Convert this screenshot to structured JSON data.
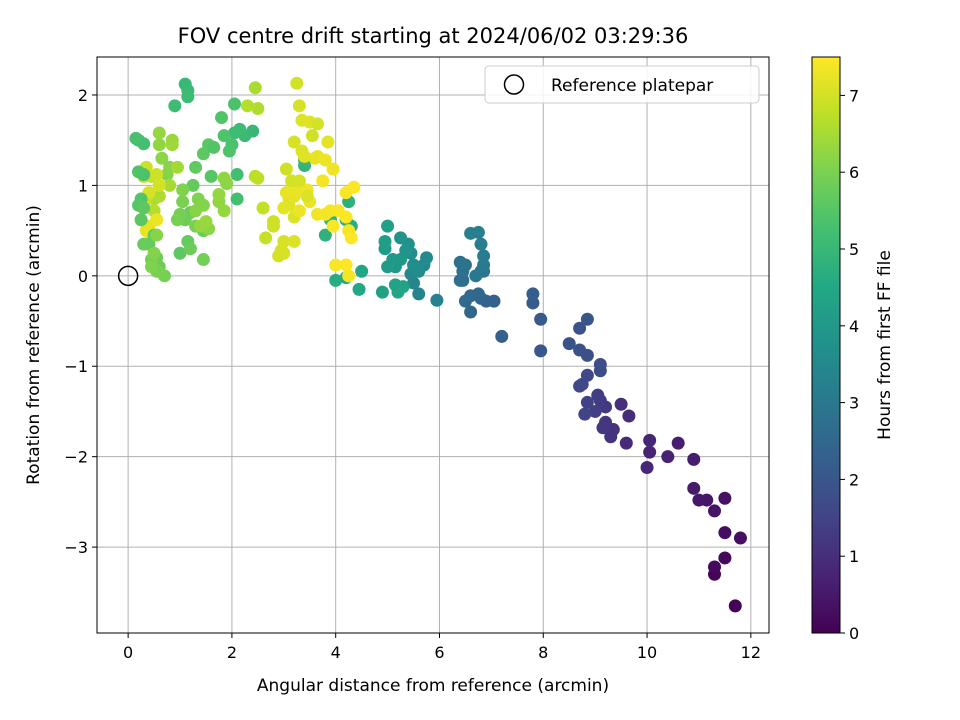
{
  "chart_data": {
    "type": "scatter",
    "title": "FOV centre drift starting at 2024/06/02 03:29:36",
    "xlabel": "Angular distance from reference (arcmin)",
    "ylabel": "Rotation from reference (arcmin)",
    "xlim": [
      -0.6,
      12.35
    ],
    "ylim": [
      -3.95,
      2.42
    ],
    "xticks": [
      0,
      2,
      4,
      6,
      8,
      10,
      12
    ],
    "yticks": [
      -3,
      -2,
      -1,
      0,
      1,
      2
    ],
    "grid": true,
    "legend": {
      "placement": "top-right",
      "entries": [
        "Reference platepar"
      ]
    },
    "reference_point": {
      "x": 0,
      "y": 0
    },
    "colorbar": {
      "label": "Hours from first FF file",
      "colormap": "viridis",
      "range": [
        0,
        7.5
      ],
      "ticks": [
        0,
        1,
        2,
        3,
        4,
        5,
        6,
        7
      ]
    },
    "points": [
      [
        11.7,
        -3.65,
        0.05
      ],
      [
        11.3,
        -3.3,
        0.1
      ],
      [
        11.5,
        -3.12,
        0.15
      ],
      [
        11.3,
        -3.22,
        0.2
      ],
      [
        11.5,
        -2.84,
        0.25
      ],
      [
        11.8,
        -2.9,
        0.3
      ],
      [
        11.5,
        -2.46,
        0.35
      ],
      [
        11.3,
        -2.6,
        0.4
      ],
      [
        11.15,
        -2.48,
        0.45
      ],
      [
        11.0,
        -2.48,
        0.5
      ],
      [
        10.9,
        -2.35,
        0.55
      ],
      [
        10.9,
        -2.03,
        0.6
      ],
      [
        10.6,
        -1.85,
        0.65
      ],
      [
        10.4,
        -2.0,
        0.7
      ],
      [
        10.05,
        -1.95,
        0.75
      ],
      [
        10.05,
        -1.82,
        0.8
      ],
      [
        10.0,
        -2.12,
        0.85
      ],
      [
        9.6,
        -1.85,
        0.9
      ],
      [
        9.65,
        -1.55,
        0.95
      ],
      [
        9.5,
        -1.42,
        1.0
      ],
      [
        9.35,
        -1.7,
        1.05
      ],
      [
        9.3,
        -1.78,
        1.1
      ],
      [
        9.2,
        -1.62,
        1.15
      ],
      [
        9.15,
        -1.68,
        1.2
      ],
      [
        9.2,
        -1.45,
        1.25
      ],
      [
        9.1,
        -1.38,
        1.3
      ],
      [
        9.05,
        -1.32,
        1.35
      ],
      [
        9.0,
        -1.5,
        1.4
      ],
      [
        8.85,
        -1.4,
        1.45
      ],
      [
        8.8,
        -1.53,
        1.5
      ],
      [
        8.75,
        -1.2,
        1.55
      ],
      [
        8.85,
        -1.1,
        1.6
      ],
      [
        8.7,
        -1.22,
        1.65
      ],
      [
        9.1,
        -1.05,
        1.7
      ],
      [
        9.1,
        -0.98,
        1.75
      ],
      [
        8.85,
        -0.88,
        1.8
      ],
      [
        8.7,
        -0.82,
        1.85
      ],
      [
        8.5,
        -0.75,
        1.9
      ],
      [
        8.7,
        -0.58,
        1.95
      ],
      [
        8.85,
        -0.48,
        2.0
      ],
      [
        7.95,
        -0.83,
        2.05
      ],
      [
        7.95,
        -0.48,
        2.1
      ],
      [
        7.8,
        -0.3,
        2.15
      ],
      [
        7.8,
        -0.2,
        2.2
      ],
      [
        7.2,
        -0.67,
        2.25
      ],
      [
        7.05,
        -0.28,
        2.3
      ],
      [
        6.9,
        -0.28,
        2.35
      ],
      [
        6.8,
        -0.25,
        2.4
      ],
      [
        6.75,
        -0.2,
        2.45
      ],
      [
        6.6,
        -0.4,
        2.5
      ],
      [
        6.6,
        -0.22,
        2.55
      ],
      [
        6.5,
        -0.28,
        2.6
      ],
      [
        6.45,
        -0.05,
        2.65
      ],
      [
        6.4,
        -0.05,
        2.7
      ],
      [
        6.45,
        0.05,
        2.75
      ],
      [
        6.4,
        0.15,
        2.8
      ],
      [
        6.5,
        0.12,
        2.85
      ],
      [
        6.8,
        0.05,
        2.9
      ],
      [
        6.85,
        0.05,
        2.95
      ],
      [
        6.7,
        0.0,
        3.0
      ],
      [
        6.85,
        0.12,
        3.05
      ],
      [
        6.85,
        0.22,
        3.1
      ],
      [
        6.8,
        0.35,
        3.15
      ],
      [
        6.75,
        0.48,
        3.2
      ],
      [
        6.6,
        0.47,
        3.25
      ],
      [
        5.95,
        -0.27,
        3.3
      ],
      [
        5.6,
        -0.2,
        3.35
      ],
      [
        5.5,
        -0.08,
        3.4
      ],
      [
        5.45,
        0.02,
        3.45
      ],
      [
        5.7,
        0.12,
        3.5
      ],
      [
        5.75,
        0.2,
        3.55
      ],
      [
        5.6,
        0.05,
        3.6
      ],
      [
        5.5,
        0.12,
        3.65
      ],
      [
        5.45,
        0.25,
        3.7
      ],
      [
        5.4,
        0.35,
        3.75
      ],
      [
        5.25,
        0.42,
        3.8
      ],
      [
        5.35,
        0.28,
        3.85
      ],
      [
        5.25,
        0.18,
        3.9
      ],
      [
        5.15,
        0.1,
        3.95
      ],
      [
        5.1,
        0.18,
        4.0
      ],
      [
        5.0,
        0.1,
        4.05
      ],
      [
        4.95,
        0.3,
        4.1
      ],
      [
        4.95,
        0.38,
        4.15
      ],
      [
        5.0,
        0.55,
        4.2
      ],
      [
        4.9,
        -0.18,
        4.25
      ],
      [
        5.15,
        -0.1,
        4.3
      ],
      [
        5.3,
        -0.12,
        4.35
      ],
      [
        5.2,
        -0.18,
        4.4
      ],
      [
        4.5,
        0.05,
        4.45
      ],
      [
        4.45,
        -0.15,
        4.5
      ],
      [
        4.2,
        -0.02,
        4.55
      ],
      [
        4.0,
        -0.05,
        4.6
      ],
      [
        4.3,
        0.55,
        4.65
      ],
      [
        4.2,
        0.62,
        4.7
      ],
      [
        4.25,
        0.82,
        4.75
      ],
      [
        3.8,
        0.45,
        4.8
      ],
      [
        3.9,
        0.62,
        4.85
      ],
      [
        3.4,
        1.22,
        4.9
      ],
      [
        3.4,
        1.28,
        4.95
      ],
      [
        2.4,
        1.6,
        5.0
      ],
      [
        2.25,
        1.55,
        5.05
      ],
      [
        2.15,
        1.62,
        5.1
      ],
      [
        2.05,
        1.58,
        5.15
      ],
      [
        2.1,
        1.12,
        5.2
      ],
      [
        2.1,
        0.85,
        5.25
      ],
      [
        2.0,
        1.45,
        5.3
      ],
      [
        2.05,
        1.9,
        5.35
      ],
      [
        1.85,
        1.55,
        5.4
      ],
      [
        1.8,
        1.75,
        5.45
      ],
      [
        1.6,
        1.1,
        5.5
      ],
      [
        1.55,
        1.45,
        5.55
      ],
      [
        1.45,
        1.35,
        5.6
      ],
      [
        1.3,
        1.2,
        5.65
      ],
      [
        1.25,
        1.0,
        5.7
      ],
      [
        1.45,
        0.5,
        5.75
      ],
      [
        1.2,
        0.7,
        5.8
      ],
      [
        1.1,
        0.62,
        5.85
      ],
      [
        1.0,
        0.68,
        5.9
      ],
      [
        0.95,
        0.62,
        5.95
      ],
      [
        1.05,
        0.82,
        6.0
      ],
      [
        1.05,
        0.95,
        6.05
      ],
      [
        0.75,
        1.12,
        6.1
      ],
      [
        0.8,
        1.2,
        6.15
      ],
      [
        0.65,
        1.3,
        6.2
      ],
      [
        0.6,
        1.45,
        6.25
      ],
      [
        0.6,
        1.58,
        6.3
      ],
      [
        0.85,
        1.5,
        6.35
      ],
      [
        0.85,
        1.45,
        6.4
      ],
      [
        0.95,
        1.2,
        6.45
      ],
      [
        0.8,
        1.0,
        6.5
      ],
      [
        0.6,
        0.88,
        6.55
      ],
      [
        0.5,
        0.85,
        6.6
      ],
      [
        0.5,
        0.72,
        6.65
      ],
      [
        0.55,
        0.62,
        6.7
      ],
      [
        0.35,
        0.85,
        6.75
      ],
      [
        0.3,
        1.1,
        6.8
      ],
      [
        0.45,
        1.1,
        6.85
      ],
      [
        0.35,
        1.2,
        6.9
      ],
      [
        0.55,
        1.12,
        6.95
      ],
      [
        0.6,
        1.0,
        7.0
      ],
      [
        0.4,
        0.92,
        7.05
      ],
      [
        0.3,
        0.78,
        7.1
      ],
      [
        0.25,
        0.62,
        7.15
      ],
      [
        0.35,
        0.5,
        7.2
      ],
      [
        0.4,
        0.55,
        7.25
      ],
      [
        0.55,
        0.62,
        7.3
      ],
      [
        0.45,
        0.45,
        7.35
      ],
      [
        1.1,
        2.12,
        5.0
      ],
      [
        1.15,
        2.05,
        5.05
      ],
      [
        1.15,
        1.98,
        5.1
      ],
      [
        0.9,
        1.88,
        5.15
      ],
      [
        0.2,
        1.5,
        5.2
      ],
      [
        0.3,
        1.46,
        5.25
      ],
      [
        0.15,
        1.52,
        5.3
      ],
      [
        0.3,
        1.12,
        5.35
      ],
      [
        0.2,
        1.15,
        5.4
      ],
      [
        0.25,
        0.85,
        5.45
      ],
      [
        0.2,
        0.78,
        5.5
      ],
      [
        0.25,
        0.62,
        5.55
      ],
      [
        0.3,
        0.75,
        5.6
      ],
      [
        0.5,
        0.45,
        5.65
      ],
      [
        0.4,
        0.35,
        5.7
      ],
      [
        0.3,
        0.35,
        5.75
      ],
      [
        0.55,
        0.2,
        5.8
      ],
      [
        0.6,
        0.1,
        5.85
      ],
      [
        0.45,
        0.18,
        5.9
      ],
      [
        0.7,
        0.0,
        5.95
      ],
      [
        0.55,
        0.05,
        6.0
      ],
      [
        0.45,
        0.1,
        6.05
      ],
      [
        0.5,
        0.25,
        6.1
      ],
      [
        0.55,
        0.45,
        6.15
      ],
      [
        1.0,
        0.25,
        5.6
      ],
      [
        1.15,
        0.38,
        5.7
      ],
      [
        1.2,
        0.3,
        5.8
      ],
      [
        1.45,
        0.18,
        5.9
      ],
      [
        1.3,
        0.55,
        6.0
      ],
      [
        1.35,
        0.85,
        6.05
      ],
      [
        1.45,
        0.78,
        6.1
      ],
      [
        1.3,
        0.72,
        6.15
      ],
      [
        1.55,
        0.52,
        6.2
      ],
      [
        1.75,
        0.82,
        6.25
      ],
      [
        1.75,
        0.9,
        6.3
      ],
      [
        1.65,
        1.42,
        5.45
      ],
      [
        1.95,
        1.38,
        5.4
      ],
      [
        1.85,
        0.72,
        6.3
      ],
      [
        1.9,
        1.02,
        6.2
      ],
      [
        1.85,
        1.08,
        6.25
      ],
      [
        1.4,
        0.55,
        6.3
      ],
      [
        1.5,
        0.6,
        6.35
      ],
      [
        2.45,
        2.08,
        6.55
      ],
      [
        2.5,
        1.85,
        6.6
      ],
      [
        2.3,
        1.88,
        6.65
      ],
      [
        2.45,
        1.1,
        6.7
      ],
      [
        2.5,
        1.08,
        6.75
      ],
      [
        2.6,
        0.75,
        6.8
      ],
      [
        2.65,
        0.42,
        6.85
      ],
      [
        2.8,
        0.6,
        6.9
      ],
      [
        2.8,
        0.55,
        6.95
      ],
      [
        2.95,
        0.28,
        7.0
      ],
      [
        2.9,
        0.22,
        7.0
      ],
      [
        3.0,
        0.25,
        7.05
      ],
      [
        3.0,
        0.38,
        7.05
      ],
      [
        3.2,
        0.38,
        7.1
      ],
      [
        3.2,
        0.65,
        7.1
      ],
      [
        3.1,
        0.78,
        7.15
      ],
      [
        3.1,
        0.85,
        7.15
      ],
      [
        3.0,
        0.75,
        7.2
      ],
      [
        3.2,
        0.88,
        7.2
      ],
      [
        3.05,
        0.92,
        7.25
      ],
      [
        3.25,
        0.95,
        7.25
      ],
      [
        3.3,
        0.72,
        7.3
      ],
      [
        3.5,
        0.82,
        7.3
      ],
      [
        3.45,
        0.95,
        7.35
      ],
      [
        3.65,
        0.68,
        7.35
      ],
      [
        3.8,
        0.68,
        7.4
      ],
      [
        3.9,
        0.72,
        7.4
      ],
      [
        3.95,
        0.55,
        7.45
      ],
      [
        4.05,
        0.72,
        7.45
      ],
      [
        4.2,
        0.65,
        7.5
      ],
      [
        4.35,
        0.98,
        7.5
      ],
      [
        4.2,
        0.92,
        7.45
      ],
      [
        4.25,
        0.5,
        7.4
      ],
      [
        4.3,
        0.42,
        7.5
      ],
      [
        4.0,
        0.12,
        7.45
      ],
      [
        4.2,
        0.12,
        7.5
      ],
      [
        4.25,
        0.0,
        7.4
      ],
      [
        3.25,
        2.13,
        7.0
      ],
      [
        3.3,
        1.88,
        7.05
      ],
      [
        3.35,
        1.72,
        7.1
      ],
      [
        3.5,
        1.7,
        7.15
      ],
      [
        3.65,
        1.68,
        7.0
      ],
      [
        3.55,
        1.55,
        6.95
      ],
      [
        3.2,
        1.48,
        7.05
      ],
      [
        3.35,
        1.38,
        7.1
      ],
      [
        3.4,
        1.32,
        7.15
      ],
      [
        3.6,
        1.3,
        7.2
      ],
      [
        3.65,
        1.32,
        7.25
      ],
      [
        3.8,
        1.28,
        7.3
      ],
      [
        3.85,
        1.48,
        7.2
      ],
      [
        3.95,
        1.18,
        7.35
      ],
      [
        3.75,
        1.05,
        7.4
      ],
      [
        3.05,
        1.18,
        6.95
      ],
      [
        3.15,
        1.05,
        7.0
      ],
      [
        3.3,
        1.05,
        7.05
      ],
      [
        3.45,
        0.88,
        7.1
      ]
    ]
  }
}
